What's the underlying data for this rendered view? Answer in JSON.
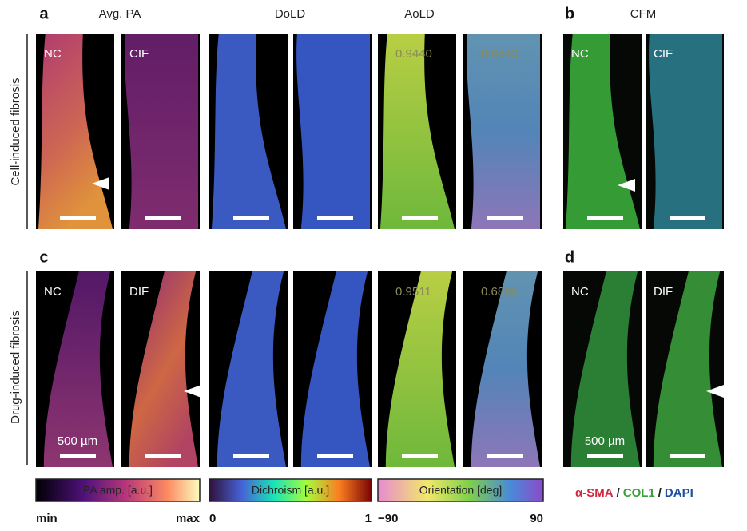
{
  "panel_labels": [
    "a",
    "b",
    "c",
    "d"
  ],
  "column_headers": [
    "Avg. PA",
    "DoLD",
    "AoLD",
    "CFM"
  ],
  "row_labels": [
    "Cell-induced fibrosis",
    "Drug-induced fibrosis"
  ],
  "rows": [
    {
      "pa_labels": [
        "NC",
        "CIF"
      ],
      "aold_values": [
        "0.9440",
        "0.6643"
      ],
      "cfm_labels": [
        "NC",
        "CIF"
      ]
    },
    {
      "pa_labels": [
        "NC",
        "DIF"
      ],
      "aold_values": [
        "0.9511",
        "0.6865"
      ],
      "cfm_labels": [
        "NC",
        "DIF"
      ],
      "scale_labels": [
        "500 µm",
        "500 µm"
      ]
    }
  ],
  "colorbars": [
    {
      "title": "PA amp. [a.u.]",
      "min": "min",
      "max": "max"
    },
    {
      "title": "Dichroism [a.u.]",
      "min": "0",
      "max": "1"
    },
    {
      "title": "Orientation [deg]",
      "min": "−90",
      "max": "90"
    }
  ],
  "stain_legend": [
    {
      "text": "α-SMA",
      "color": "#d0283c"
    },
    {
      "text": "/",
      "color": "#222222"
    },
    {
      "text": "COL1",
      "color": "#3aa03a"
    },
    {
      "text": "/",
      "color": "#222222"
    },
    {
      "text": "DAPI",
      "color": "#1f4e9c"
    }
  ]
}
